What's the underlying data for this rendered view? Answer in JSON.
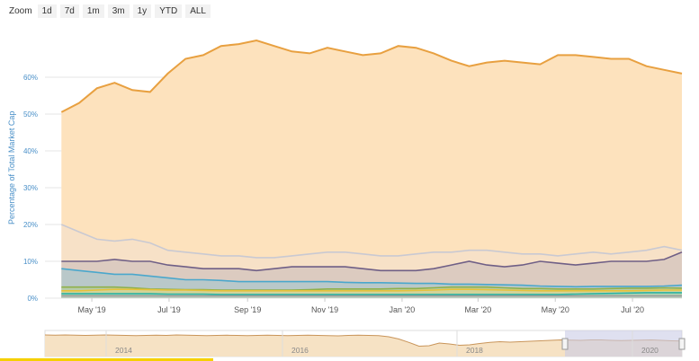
{
  "zoom": {
    "label": "Zoom",
    "buttons": [
      "1d",
      "7d",
      "1m",
      "3m",
      "1y",
      "YTD",
      "ALL"
    ]
  },
  "colors": {
    "btc": "#e8a040",
    "btc_fill": "#fde2bd",
    "eth": "#c9c9d2",
    "purple": "#6f5f86",
    "cyan": "#4aa7cc",
    "green": "#8fb04a",
    "yellow": "#e6c23a",
    "teal": "#2bb3a3",
    "gray": "#999999",
    "grid": "#e6e6e6",
    "axis_text": "#4a90c8",
    "navigator_fill": "#c9cbe6"
  },
  "chart_data": {
    "type": "area",
    "ylabel": "Percentage of Total Market Cap",
    "ylim": [
      0,
      70
    ],
    "y_ticks": [
      "0%",
      "10%",
      "20%",
      "30%",
      "40%",
      "50%",
      "60%"
    ],
    "x_ticks": [
      "May '19",
      "Jul '19",
      "Sep '19",
      "Nov '19",
      "Jan '20",
      "Mar '20",
      "May '20",
      "Jul '20"
    ],
    "x": [
      "2019-04-07",
      "2019-04-21",
      "2019-05-05",
      "2019-05-19",
      "2019-06-02",
      "2019-06-16",
      "2019-06-30",
      "2019-07-14",
      "2019-07-28",
      "2019-08-11",
      "2019-08-25",
      "2019-09-08",
      "2019-09-22",
      "2019-10-06",
      "2019-10-20",
      "2019-11-03",
      "2019-11-17",
      "2019-12-01",
      "2019-12-15",
      "2019-12-29",
      "2020-01-12",
      "2020-01-26",
      "2020-02-09",
      "2020-02-23",
      "2020-03-08",
      "2020-03-22",
      "2020-04-05",
      "2020-04-19",
      "2020-05-03",
      "2020-05-17",
      "2020-05-31",
      "2020-06-14",
      "2020-06-28",
      "2020-07-12",
      "2020-07-26",
      "2020-08-09"
    ],
    "series": [
      {
        "key": "btc",
        "values": [
          50.5,
          53,
          57,
          58.5,
          56.5,
          56,
          61,
          65,
          66,
          68.5,
          69,
          70,
          68.5,
          67,
          66.5,
          68,
          67,
          66,
          66.5,
          68.5,
          68,
          66.5,
          64.5,
          63,
          64,
          64.5,
          64,
          63.5,
          66,
          66,
          65.5,
          65,
          65,
          63,
          62,
          61
        ]
      },
      {
        "key": "eth",
        "values": [
          20,
          18,
          16,
          15.5,
          16,
          15,
          13,
          12.5,
          12,
          11.5,
          11.5,
          11,
          11,
          11.5,
          12,
          12.5,
          12.5,
          12,
          11.5,
          11.5,
          12,
          12.5,
          12.5,
          13,
          13,
          12.5,
          12,
          12,
          11.5,
          12,
          12.5,
          12,
          12.5,
          13,
          14,
          13
        ]
      },
      {
        "key": "purple",
        "values": [
          10,
          10,
          10,
          10.5,
          10,
          10,
          9,
          8.5,
          8,
          8,
          8,
          7.5,
          8,
          8.5,
          8.5,
          8.5,
          8.5,
          8,
          7.5,
          7.5,
          7.5,
          8,
          9,
          10,
          9,
          8.5,
          9,
          10,
          9.5,
          9,
          9.5,
          10,
          10,
          10,
          10.5,
          12.5
        ]
      },
      {
        "key": "cyan",
        "values": [
          8,
          7.5,
          7,
          6.5,
          6.5,
          6,
          5.5,
          5,
          5,
          4.8,
          4.5,
          4.5,
          4.5,
          4.5,
          4.5,
          4.5,
          4.3,
          4.2,
          4.2,
          4.1,
          4,
          4,
          3.8,
          3.8,
          3.7,
          3.6,
          3.5,
          3.3,
          3.2,
          3.1,
          3.2,
          3.2,
          3.2,
          3.2,
          3.3,
          3.5
        ]
      },
      {
        "key": "green",
        "values": [
          3,
          3,
          3,
          3,
          2.8,
          2.5,
          2.4,
          2.3,
          2.3,
          2.2,
          2.2,
          2.2,
          2.2,
          2.2,
          2.3,
          2.5,
          2.5,
          2.5,
          2.5,
          2.6,
          2.6,
          2.8,
          3,
          3,
          3,
          2.8,
          2.6,
          2.6,
          2.5,
          2.5,
          2.5,
          2.6,
          2.7,
          2.7,
          2.8,
          2.7
        ]
      },
      {
        "key": "yellow",
        "values": [
          2,
          2,
          2.2,
          2.4,
          2.4,
          2.3,
          2.2,
          2.2,
          2.1,
          2,
          2,
          2,
          2,
          2,
          2,
          2,
          2,
          2,
          2,
          2,
          2.1,
          2.2,
          2.4,
          2.4,
          2.3,
          2.2,
          2.1,
          2,
          2,
          2,
          2,
          2,
          2,
          2.1,
          2.2,
          2.2
        ]
      },
      {
        "key": "teal",
        "values": [
          1.2,
          1.2,
          1.2,
          1.2,
          1.2,
          1.2,
          1.1,
          1.1,
          1.1,
          1,
          1,
          1,
          1,
          1,
          1,
          1,
          1,
          1,
          1,
          1,
          1,
          1,
          1,
          1,
          1,
          1,
          1,
          1,
          1,
          1.1,
          1.2,
          1.3,
          1.4,
          1.5,
          1.5,
          1.5
        ]
      },
      {
        "key": "gray",
        "values": [
          0.6,
          0.6,
          0.6,
          0.6,
          0.6,
          0.6,
          0.6,
          0.6,
          0.6,
          0.6,
          0.6,
          0.6,
          0.6,
          0.6,
          0.6,
          0.6,
          0.6,
          0.6,
          0.6,
          0.6,
          0.6,
          0.6,
          0.6,
          0.6,
          0.6,
          0.6,
          0.6,
          0.6,
          0.6,
          0.6,
          0.6,
          0.6,
          0.6,
          0.6,
          0.6,
          0.6
        ]
      }
    ],
    "navigator": {
      "x_ticks": [
        "2014",
        "2016",
        "2018",
        "2020"
      ],
      "values": [
        88,
        87,
        88,
        87,
        86,
        87,
        88,
        87,
        86,
        85,
        86,
        87,
        86,
        88,
        87,
        86,
        85,
        86,
        87,
        86,
        85,
        86,
        87,
        86,
        85,
        86,
        87,
        86,
        85,
        84,
        86,
        87,
        86,
        85,
        80,
        70,
        55,
        38,
        40,
        52,
        48,
        42,
        44,
        50,
        55,
        58,
        56,
        58,
        60,
        62,
        64,
        66,
        65,
        64,
        66,
        66,
        64,
        63,
        64,
        65,
        66,
        64,
        62,
        61
      ]
    }
  }
}
